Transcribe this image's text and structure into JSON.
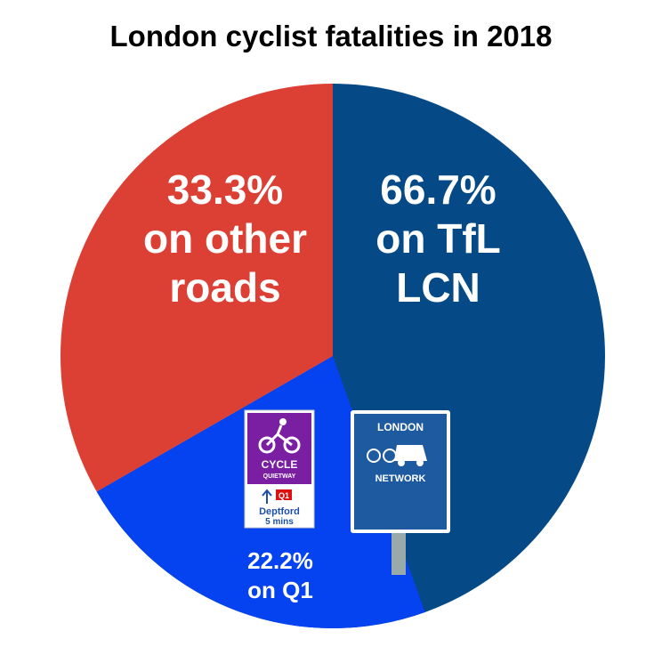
{
  "chart_data": {
    "type": "pie",
    "title": "London cyclist fatalities in 2018",
    "slices": [
      {
        "name": "on TfL LCN",
        "value": 66.7,
        "value_label": "66.7%",
        "color": "#054a87",
        "sub": {
          "name": "on Q1",
          "value": 22.2,
          "value_label": "22.2%",
          "color": "#0542f0"
        }
      },
      {
        "name": "on other roads",
        "value": 33.3,
        "value_label": "33.3%",
        "color": "#dc4034"
      }
    ]
  },
  "signs": {
    "quietway": {
      "line1": "CYCLE",
      "line2": "QUIETWAY",
      "route": "Q1",
      "destination": "Deptford",
      "time": "5 mins"
    },
    "lcn": {
      "top": "LONDON",
      "bottom": "NETWORK"
    }
  }
}
